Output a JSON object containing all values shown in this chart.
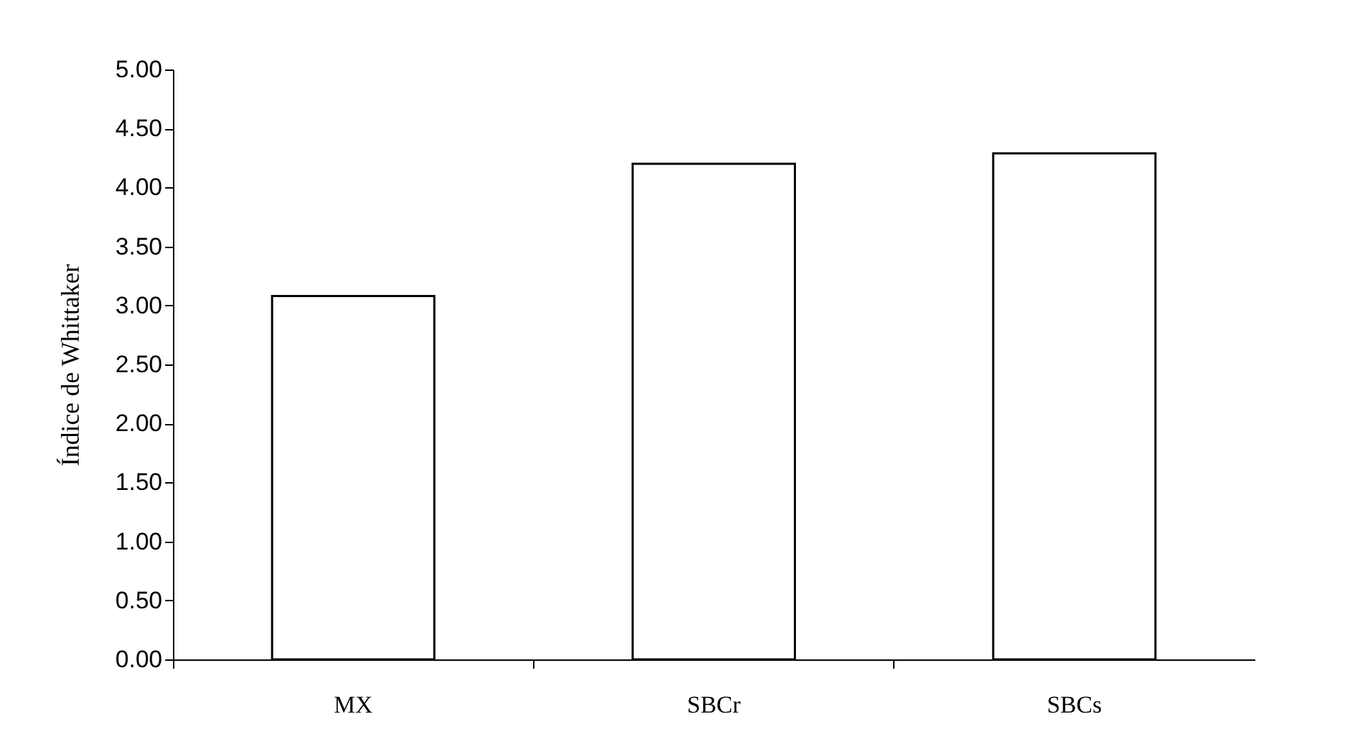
{
  "chart_data": {
    "type": "bar",
    "ylabel": "Índice de Whittaker",
    "categories": [
      "MX",
      "SBCr",
      "SBCs"
    ],
    "values": [
      3.08,
      4.2,
      4.29
    ],
    "color": "#ffffff",
    "ylim": [
      0,
      5
    ],
    "yticks": [
      {
        "value": 0,
        "label": "0.00"
      },
      {
        "value": 0.5,
        "label": "0.50"
      },
      {
        "value": 1,
        "label": "1.00"
      },
      {
        "value": 1.5,
        "label": "1.50"
      },
      {
        "value": 2,
        "label": "2.00"
      },
      {
        "value": 2.5,
        "label": "2.50"
      },
      {
        "value": 3,
        "label": "3.00"
      },
      {
        "value": 3.5,
        "label": "3.50"
      },
      {
        "value": 4,
        "label": "4.00"
      },
      {
        "value": 4.5,
        "label": "4.50"
      },
      {
        "value": 5,
        "label": "5.00"
      }
    ],
    "grid": false
  }
}
